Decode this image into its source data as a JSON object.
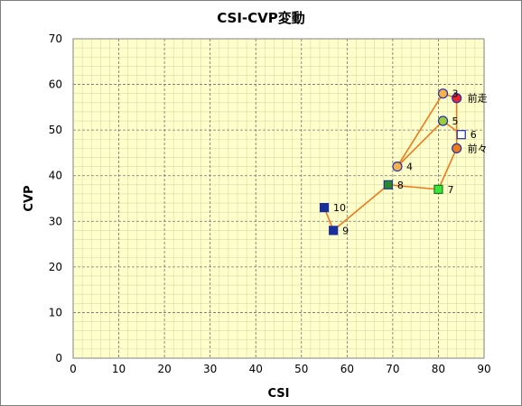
{
  "chart_data": {
    "type": "scatter",
    "title": "CSI-CVP変動",
    "xlabel": "CSI",
    "ylabel": "CVP",
    "xlim": [
      0,
      90
    ],
    "ylim": [
      0,
      70
    ],
    "x_major_ticks": [
      0,
      10,
      20,
      30,
      40,
      50,
      60,
      70,
      80,
      90
    ],
    "y_major_ticks": [
      0,
      10,
      20,
      30,
      40,
      50,
      60,
      70
    ],
    "minor_grid_step": 2,
    "grid": true,
    "plot_background": "#ffffcc",
    "line_color": "#f07a1a",
    "path_order": [
      "10",
      "9",
      "8",
      "7",
      "前々",
      "前走",
      "3",
      "4",
      "5",
      "6"
    ],
    "points": [
      {
        "label": "前走",
        "x": 84,
        "y": 57,
        "marker": "circle",
        "fill": "#e8232a",
        "stroke": "#2033b0"
      },
      {
        "label": "3",
        "x": 81,
        "y": 58,
        "marker": "circle",
        "fill": "#f6b14a",
        "stroke": "#2033b0"
      },
      {
        "label": "4",
        "x": 71,
        "y": 42,
        "marker": "circle",
        "fill": "#f6b14a",
        "stroke": "#2033b0"
      },
      {
        "label": "5",
        "x": 81,
        "y": 52,
        "marker": "circle",
        "fill": "#9ccc3a",
        "stroke": "#2033b0"
      },
      {
        "label": "6",
        "x": 85,
        "y": 49,
        "marker": "square",
        "fill": "#ffffff",
        "stroke": "#2033b0"
      },
      {
        "label": "前々",
        "x": 84,
        "y": 46,
        "marker": "circle",
        "fill": "#f07a1a",
        "stroke": "#2033b0"
      },
      {
        "label": "7",
        "x": 80,
        "y": 37,
        "marker": "square",
        "fill": "#39e639",
        "stroke": "#1a7a1a"
      },
      {
        "label": "8",
        "x": 69,
        "y": 38,
        "marker": "square",
        "fill": "#2a8a2a",
        "stroke": "#1a3a99"
      },
      {
        "label": "9",
        "x": 57,
        "y": 28,
        "marker": "square",
        "fill": "#1a2e9c",
        "stroke": "#1a2e9c"
      },
      {
        "label": "10",
        "x": 55,
        "y": 33,
        "marker": "square",
        "fill": "#1a2e9c",
        "stroke": "#1a2e9c"
      }
    ]
  }
}
